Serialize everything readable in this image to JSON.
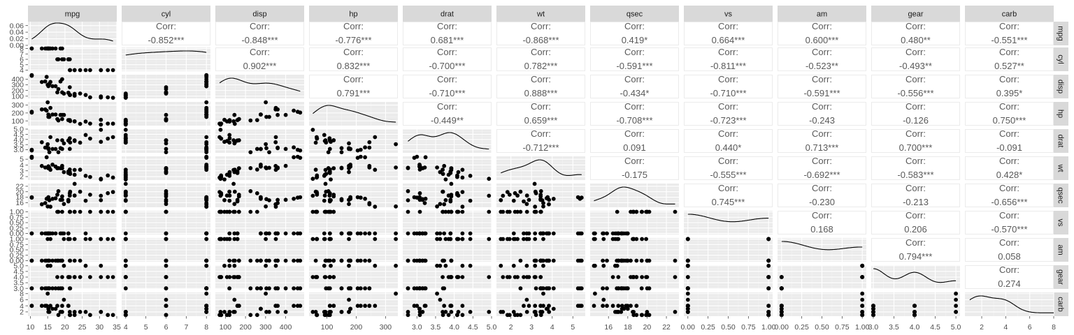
{
  "chart_data": {
    "type": "scatter-matrix",
    "variables": [
      "mpg",
      "cyl",
      "disp",
      "hp",
      "drat",
      "wt",
      "qsec",
      "vs",
      "am",
      "gear",
      "carb"
    ],
    "corr_heading": "Corr:",
    "correlations": [
      [
        "",
        "-0.852***",
        "-0.848***",
        "-0.776***",
        "0.681***",
        "-0.868***",
        "0.419*",
        "0.664***",
        "0.600***",
        "0.480**",
        "-0.551***"
      ],
      [
        "",
        "",
        "0.902***",
        "0.832***",
        "-0.700***",
        "0.782***",
        "-0.591***",
        "-0.811***",
        "-0.523**",
        "-0.493**",
        "0.527**"
      ],
      [
        "",
        "",
        "",
        "0.791***",
        "-0.710***",
        "0.888***",
        "-0.434*",
        "-0.710***",
        "-0.591***",
        "-0.556***",
        "0.395*"
      ],
      [
        "",
        "",
        "",
        "",
        "-0.449**",
        "0.659***",
        "-0.708***",
        "-0.723***",
        "-0.243",
        "-0.126",
        "0.750***"
      ],
      [
        "",
        "",
        "",
        "",
        "",
        "-0.712***",
        "0.091",
        "0.440*",
        "0.713***",
        "0.700***",
        "-0.091"
      ],
      [
        "",
        "",
        "",
        "",
        "",
        "",
        "-0.175",
        "-0.555***",
        "-0.692***",
        "-0.583***",
        "0.428*"
      ],
      [
        "",
        "",
        "",
        "",
        "",
        "",
        "",
        "0.745***",
        "-0.230",
        "-0.213",
        "-0.656***"
      ],
      [
        "",
        "",
        "",
        "",
        "",
        "",
        "",
        "",
        "0.168",
        "0.206",
        "-0.570***"
      ],
      [
        "",
        "",
        "",
        "",
        "",
        "",
        "",
        "",
        "",
        "0.794***",
        "0.058"
      ],
      [
        "",
        "",
        "",
        "",
        "",
        "",
        "",
        "",
        "",
        "",
        "0.274"
      ],
      [
        "",
        "",
        "",
        "",
        "",
        "",
        "",
        "",
        "",
        "",
        ""
      ]
    ],
    "x_axes": [
      {
        "var": "mpg",
        "range": [
          9.3,
          35.0
        ],
        "ticks": [
          10,
          15,
          20,
          25,
          30,
          35
        ]
      },
      {
        "var": "cyl",
        "range": [
          3.8,
          8.2
        ],
        "ticks": [
          4,
          5,
          6,
          7,
          8
        ]
      },
      {
        "var": "disp",
        "range": [
          50,
          492
        ],
        "ticks": [
          100,
          200,
          300,
          400
        ]
      },
      {
        "var": "hp",
        "range": [
          39,
          342
        ],
        "ticks": [
          100,
          200,
          300
        ]
      },
      {
        "var": "drat",
        "range": [
          2.62,
          5.0
        ],
        "ticks": [
          "3.0",
          "3.5",
          "4.0",
          "4.5",
          "5.0"
        ]
      },
      {
        "var": "wt",
        "range": [
          1.3,
          5.6
        ],
        "ticks": [
          2,
          3,
          4,
          5
        ]
      },
      {
        "var": "qsec",
        "range": [
          14.1,
          23.3
        ],
        "ticks": [
          16,
          18,
          20,
          22
        ]
      },
      {
        "var": "vs",
        "range": [
          -0.05,
          1.05
        ],
        "ticks": [
          "0.00",
          "0.25",
          "0.50",
          "0.75",
          "1.00"
        ]
      },
      {
        "var": "am",
        "range": [
          -0.05,
          1.05
        ],
        "ticks": [
          "0.00",
          "0.25",
          "0.50",
          "0.75",
          "1.00"
        ]
      },
      {
        "var": "gear",
        "range": [
          2.95,
          5.1
        ],
        "ticks": [
          "3.0",
          "3.5",
          "4.0",
          "4.5",
          "5.0"
        ]
      },
      {
        "var": "carb",
        "range": [
          0.6,
          8.0
        ],
        "ticks": [
          2,
          4,
          6,
          8
        ]
      }
    ],
    "y_axes": [
      {
        "var": "mpg",
        "range": [
          0.0,
          0.072
        ],
        "ticks": [
          "0.00",
          "0.02",
          "0.04",
          "0.06"
        ]
      },
      {
        "var": "cyl",
        "range": [
          3.8,
          8.2
        ],
        "ticks": [
          4,
          5,
          6,
          7,
          8
        ]
      },
      {
        "var": "disp",
        "range": [
          60,
          480
        ],
        "ticks": [
          100,
          200,
          300,
          400
        ]
      },
      {
        "var": "hp",
        "range": [
          40,
          340
        ],
        "ticks": [
          100,
          200,
          300
        ]
      },
      {
        "var": "drat",
        "range": [
          2.7,
          5.0
        ],
        "ticks": [
          "3.0",
          "3.5",
          "4.0",
          "4.5",
          "5.0"
        ]
      },
      {
        "var": "wt",
        "range": [
          1.4,
          5.5
        ],
        "ticks": [
          2,
          3,
          4,
          5
        ]
      },
      {
        "var": "qsec",
        "range": [
          14.3,
          23.0
        ],
        "ticks": [
          16,
          18,
          20,
          22
        ]
      },
      {
        "var": "vs",
        "range": [
          -0.05,
          1.05
        ],
        "ticks": [
          "0.00",
          "0.25",
          "0.50",
          "0.75",
          "1.00"
        ]
      },
      {
        "var": "am",
        "range": [
          -0.05,
          1.05
        ],
        "ticks": [
          "0.00",
          "0.25",
          "0.50",
          "0.75",
          "1.00"
        ]
      },
      {
        "var": "gear",
        "range": [
          2.95,
          5.05
        ],
        "ticks": [
          "3.0",
          "3.5",
          "4.0",
          "4.5",
          "5.0"
        ]
      },
      {
        "var": "carb",
        "range": [
          0.6,
          8.4
        ],
        "ticks": [
          2,
          4,
          6,
          8
        ]
      }
    ],
    "observations": {
      "mpg": [
        21.0,
        21.0,
        22.8,
        21.4,
        18.7,
        18.1,
        14.3,
        24.4,
        22.8,
        19.2,
        17.8,
        16.4,
        17.3,
        15.2,
        10.4,
        10.4,
        14.7,
        32.4,
        30.4,
        33.9,
        21.5,
        15.5,
        15.2,
        13.3,
        19.2,
        27.3,
        26.0,
        30.4,
        15.8,
        19.7,
        15.0,
        21.4
      ],
      "cyl": [
        6,
        6,
        4,
        6,
        8,
        6,
        8,
        4,
        4,
        6,
        6,
        8,
        8,
        8,
        8,
        8,
        8,
        4,
        4,
        4,
        4,
        8,
        8,
        8,
        8,
        4,
        4,
        4,
        8,
        6,
        8,
        4
      ],
      "disp": [
        160,
        160,
        108,
        258,
        360,
        225,
        360,
        146.7,
        140.8,
        167.6,
        167.6,
        275.8,
        275.8,
        275.8,
        472,
        460,
        440,
        78.7,
        75.7,
        71.1,
        120.1,
        318,
        304,
        350,
        400,
        79,
        120.3,
        95.1,
        351,
        145,
        301,
        121
      ],
      "hp": [
        110,
        110,
        93,
        110,
        175,
        105,
        245,
        62,
        95,
        123,
        123,
        180,
        180,
        180,
        205,
        215,
        230,
        66,
        52,
        65,
        97,
        150,
        150,
        245,
        175,
        66,
        91,
        113,
        264,
        175,
        335,
        109
      ],
      "drat": [
        3.9,
        3.9,
        3.85,
        3.08,
        3.15,
        2.76,
        3.21,
        3.69,
        3.92,
        3.92,
        3.92,
        3.07,
        3.07,
        3.07,
        2.93,
        3.0,
        3.23,
        4.08,
        4.93,
        4.22,
        3.7,
        2.76,
        3.15,
        3.73,
        3.08,
        4.08,
        4.43,
        3.77,
        4.22,
        3.62,
        3.54,
        4.11
      ],
      "wt": [
        2.62,
        2.875,
        2.32,
        3.215,
        3.44,
        3.46,
        3.57,
        3.19,
        3.15,
        3.44,
        3.44,
        4.07,
        3.73,
        3.78,
        5.25,
        5.424,
        5.345,
        2.2,
        1.615,
        1.835,
        2.465,
        3.52,
        3.435,
        3.84,
        3.845,
        1.935,
        2.14,
        1.513,
        3.17,
        2.77,
        3.57,
        2.78
      ],
      "qsec": [
        16.46,
        17.02,
        18.61,
        19.44,
        17.02,
        20.22,
        15.84,
        20.0,
        22.9,
        18.3,
        18.9,
        17.4,
        17.6,
        18.0,
        17.98,
        17.82,
        17.42,
        19.47,
        18.52,
        19.9,
        20.01,
        16.87,
        17.3,
        15.41,
        17.05,
        18.9,
        16.7,
        16.9,
        14.5,
        15.5,
        14.6,
        18.6
      ],
      "vs": [
        0,
        0,
        1,
        1,
        0,
        1,
        0,
        1,
        1,
        1,
        1,
        0,
        0,
        0,
        0,
        0,
        0,
        1,
        1,
        1,
        1,
        0,
        0,
        0,
        0,
        1,
        0,
        1,
        0,
        0,
        0,
        1
      ],
      "am": [
        1,
        1,
        1,
        0,
        0,
        0,
        0,
        0,
        0,
        0,
        0,
        0,
        0,
        0,
        0,
        0,
        0,
        1,
        1,
        1,
        0,
        0,
        0,
        0,
        0,
        1,
        1,
        1,
        1,
        1,
        1,
        1
      ],
      "gear": [
        4,
        4,
        4,
        3,
        3,
        3,
        3,
        4,
        4,
        4,
        4,
        3,
        3,
        3,
        3,
        3,
        3,
        4,
        4,
        4,
        3,
        3,
        3,
        3,
        3,
        4,
        5,
        5,
        5,
        5,
        5,
        4
      ],
      "carb": [
        4,
        4,
        1,
        1,
        2,
        1,
        4,
        2,
        2,
        4,
        4,
        3,
        3,
        3,
        4,
        4,
        4,
        1,
        2,
        1,
        1,
        2,
        2,
        4,
        2,
        1,
        2,
        2,
        4,
        6,
        8,
        2
      ]
    },
    "density_bandwidths": {
      "mpg": 2.5,
      "cyl": 1.6,
      "disp": 60,
      "hp": 35,
      "drat": 0.27,
      "wt": 0.45,
      "qsec": 0.9,
      "vs": 0.34,
      "am": 0.34,
      "gear": 0.3,
      "carb": 0.9
    },
    "colors": {
      "panel_bg": "#ebebeb",
      "strip_bg": "#d9d9d9",
      "grid_major": "#ffffff",
      "grid_minor": "#f3f3f3",
      "points": "#000000",
      "corr_text": "#595959",
      "corr_panel_border": "#ebebeb"
    }
  }
}
